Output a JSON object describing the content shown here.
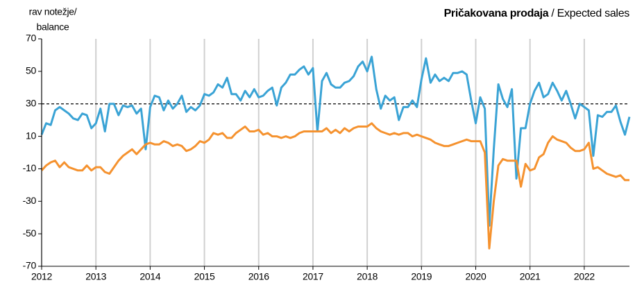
{
  "chart_data": {
    "type": "line",
    "title": "Pričakovana prodaja",
    "title_en": "/ Expected sales",
    "ylabel": [
      "rav notežje/",
      "balance"
    ],
    "xlim": [
      2012,
      2022.833
    ],
    "xticks": [
      2012,
      2013,
      2014,
      2015,
      2016,
      2017,
      2018,
      2019,
      2020,
      2021,
      2022
    ],
    "ylim": [
      -70,
      70
    ],
    "yticks": [
      -70,
      -50,
      -30,
      -10,
      10,
      30,
      50,
      70
    ],
    "reference_line": 30,
    "grid": true,
    "x": [
      2012,
      2012.083,
      2012.167,
      2012.25,
      2012.333,
      2012.417,
      2012.5,
      2012.583,
      2012.667,
      2012.75,
      2012.833,
      2012.917,
      2013,
      2013.083,
      2013.167,
      2013.25,
      2013.333,
      2013.417,
      2013.5,
      2013.583,
      2013.667,
      2013.75,
      2013.833,
      2013.917,
      2014,
      2014.083,
      2014.167,
      2014.25,
      2014.333,
      2014.417,
      2014.5,
      2014.583,
      2014.667,
      2014.75,
      2014.833,
      2014.917,
      2015,
      2015.083,
      2015.167,
      2015.25,
      2015.333,
      2015.417,
      2015.5,
      2015.583,
      2015.667,
      2015.75,
      2015.833,
      2015.917,
      2016,
      2016.083,
      2016.167,
      2016.25,
      2016.333,
      2016.417,
      2016.5,
      2016.583,
      2016.667,
      2016.75,
      2016.833,
      2016.917,
      2017,
      2017.083,
      2017.167,
      2017.25,
      2017.333,
      2017.417,
      2017.5,
      2017.583,
      2017.667,
      2017.75,
      2017.833,
      2017.917,
      2018,
      2018.083,
      2018.167,
      2018.25,
      2018.333,
      2018.417,
      2018.5,
      2018.583,
      2018.667,
      2018.75,
      2018.833,
      2018.917,
      2019,
      2019.083,
      2019.167,
      2019.25,
      2019.333,
      2019.417,
      2019.5,
      2019.583,
      2019.667,
      2019.75,
      2019.833,
      2019.917,
      2020,
      2020.083,
      2020.167,
      2020.25,
      2020.333,
      2020.417,
      2020.5,
      2020.583,
      2020.667,
      2020.75,
      2020.833,
      2020.917,
      2021,
      2021.083,
      2021.167,
      2021.25,
      2021.333,
      2021.417,
      2021.5,
      2021.583,
      2021.667,
      2021.75,
      2021.833,
      2021.917,
      2022,
      2022.083,
      2022.167,
      2022.25,
      2022.333,
      2022.417,
      2022.5,
      2022.583,
      2022.667,
      2022.75,
      2022.833
    ],
    "series": [
      {
        "color": "#3aa3d5",
        "values": [
          11,
          18,
          17,
          26,
          28,
          26,
          24,
          21,
          20,
          24,
          23,
          15,
          18,
          27,
          13,
          30,
          30,
          23,
          29,
          28,
          29,
          24,
          27,
          2,
          28,
          35,
          34,
          26,
          32,
          27,
          30,
          35,
          25,
          28,
          26,
          29,
          36,
          35,
          37,
          42,
          40,
          46,
          36,
          36,
          32,
          38,
          34,
          39,
          34,
          35,
          38,
          40,
          29,
          40,
          43,
          48,
          48,
          51,
          53,
          48,
          52,
          13,
          44,
          49,
          42,
          40,
          40,
          43,
          44,
          47,
          53,
          56,
          50,
          59,
          39,
          27,
          35,
          32,
          34,
          20,
          28,
          28,
          32,
          28,
          45,
          58,
          43,
          48,
          44,
          46,
          44,
          49,
          49,
          50,
          48,
          32,
          18,
          34,
          27,
          -45,
          2,
          42,
          33,
          28,
          39,
          -16,
          15,
          15,
          30,
          38,
          43,
          34,
          36,
          43,
          38,
          32,
          38,
          30,
          21,
          30,
          28,
          26,
          -2,
          23,
          22,
          25,
          25,
          29,
          19,
          11,
          22
        ]
      },
      {
        "color": "#f5922f",
        "values": [
          -11,
          -8,
          -6,
          -5,
          -9,
          -6,
          -9,
          -10,
          -11,
          -11,
          -8,
          -11,
          -9,
          -9,
          -12,
          -13,
          -9,
          -5,
          -2,
          0,
          2,
          -1,
          2,
          5,
          6,
          5,
          5,
          7,
          6,
          4,
          5,
          4,
          1,
          2,
          4,
          7,
          6,
          8,
          12,
          11,
          12,
          9,
          9,
          12,
          14,
          16,
          13,
          13,
          14,
          11,
          12,
          10,
          10,
          9,
          10,
          9,
          10,
          12,
          13,
          13,
          13,
          13,
          13,
          15,
          12,
          14,
          12,
          15,
          13,
          15,
          16,
          16,
          16,
          18,
          15,
          13,
          12,
          11,
          12,
          11,
          12,
          12,
          10,
          11,
          10,
          9,
          8,
          6,
          5,
          4,
          4,
          5,
          6,
          7,
          8,
          7,
          7,
          7,
          0,
          -59,
          -30,
          -8,
          -4,
          -5,
          -5,
          -5,
          -21,
          -7,
          -11,
          -10,
          -3,
          -1,
          6,
          10,
          8,
          7,
          6,
          3,
          1,
          1,
          2,
          6,
          -10,
          -9,
          -11,
          -13,
          -14,
          -15,
          -14,
          -17,
          -17
        ]
      }
    ]
  }
}
